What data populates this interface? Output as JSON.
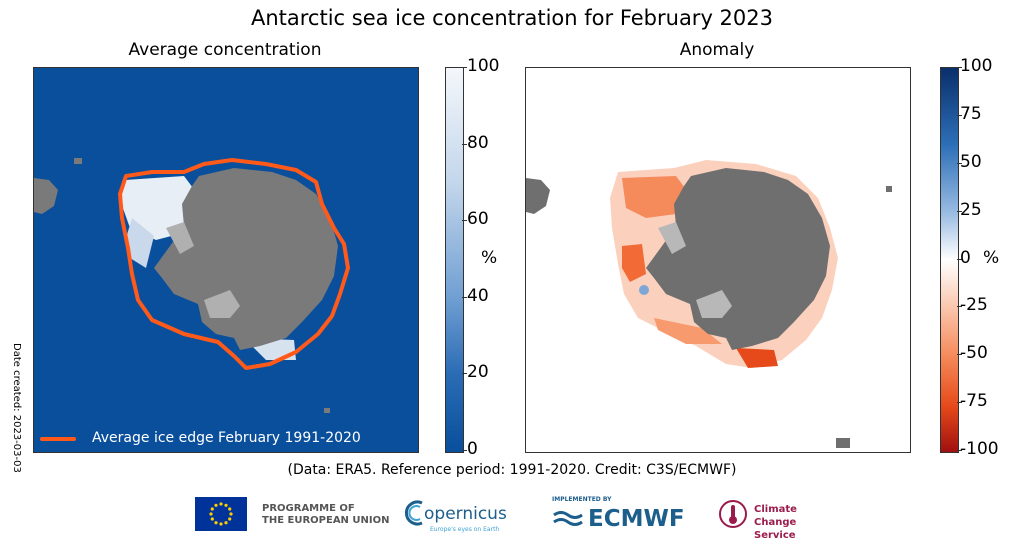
{
  "title": "Antarctic sea ice concentration for February 2023",
  "left_panel": {
    "subtitle": "Average concentration",
    "legend_label": "Average ice edge February 1991-2020",
    "colorbar_ticks": [
      "100",
      "80",
      "60",
      "40",
      "20",
      "0"
    ],
    "unit": "%",
    "colors": {
      "ocean": "#0a4f9c",
      "land": "#7a7a7a",
      "ice": "#e8eef6",
      "edge": "#ff5a1a"
    }
  },
  "right_panel": {
    "subtitle": "Anomaly",
    "colorbar_ticks": [
      "100",
      "75",
      "50",
      "25",
      "0",
      "-25",
      "-50",
      "-75",
      "-100"
    ],
    "unit": "%",
    "colors": {
      "land": "#6f6f6f",
      "neg": "#f25a23",
      "pos": "#2d6fb7"
    }
  },
  "date_note": "Date created: 2023-03-03",
  "credit": "(Data: ERA5.  Reference period: 1991-2020.  Credit: C3S/ECMWF)",
  "logos": {
    "eu_line1": "PROGRAMME OF",
    "eu_line2": "THE EUROPEAN UNION",
    "copernicus": "opernicus",
    "copernicus_tag": "Europe's eyes on Earth",
    "ecmwf_impl": "IMPLEMENTED BY",
    "ecmwf": "ECMWF",
    "c3s_line1": "Climate",
    "c3s_line2": "Change Service"
  }
}
